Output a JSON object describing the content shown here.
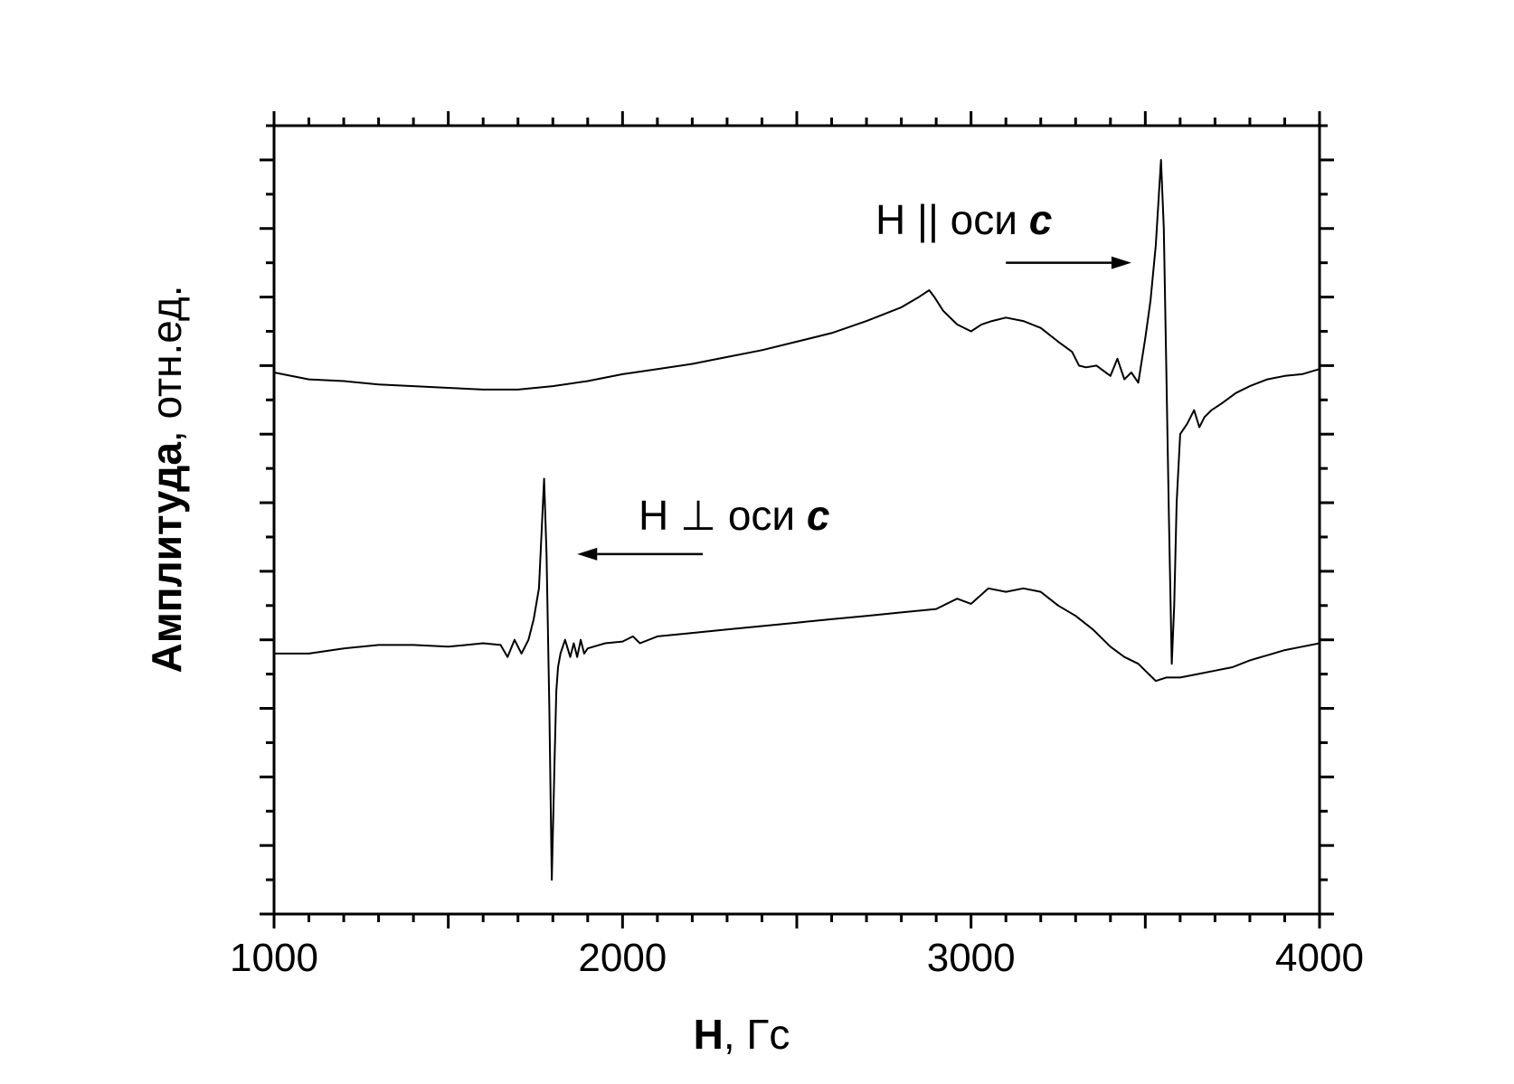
{
  "chart_data": {
    "type": "line",
    "xlabel_bold": "H",
    "xlabel_rest": ", Гс",
    "ylabel_bold": "Амплитуда",
    "ylabel_rest": ", отн.ед.",
    "xlim": [
      1000,
      4000
    ],
    "ylim": [
      0,
      23
    ],
    "x_ticks": [
      1000,
      2000,
      3000,
      4000
    ],
    "x_tick_labels": [
      "1000",
      "2000",
      "3000",
      "4000"
    ],
    "y_tick_labels_shown": false,
    "grid": false,
    "annotations": [
      {
        "id": "parallel",
        "text_plain": "H || оси ",
        "text_emph": "c",
        "arrow_from_x": 3100,
        "arrow_to_x": 3460,
        "arrow_y": 19.0,
        "points_to_series": "H || оси c"
      },
      {
        "id": "perpendicular",
        "text_plain": "H ⊥ оси ",
        "text_emph": "c",
        "arrow_from_x": 2230,
        "arrow_to_x": 1870,
        "arrow_y": 10.5,
        "points_to_series": "H ⊥ оси c"
      }
    ],
    "series": [
      {
        "name": "H || оси c",
        "x": [
          1000,
          1100,
          1200,
          1300,
          1400,
          1500,
          1600,
          1700,
          1800,
          1900,
          2000,
          2100,
          2200,
          2300,
          2400,
          2500,
          2600,
          2700,
          2800,
          2850,
          2880,
          2895,
          2920,
          2960,
          3000,
          3030,
          3060,
          3100,
          3150,
          3200,
          3250,
          3290,
          3310,
          3330,
          3360,
          3400,
          3420,
          3440,
          3460,
          3480,
          3500,
          3515,
          3530,
          3545,
          3553,
          3560,
          3568,
          3576,
          3583,
          3590,
          3600,
          3620,
          3640,
          3655,
          3670,
          3690,
          3720,
          3760,
          3800,
          3850,
          3900,
          3950,
          4000
        ],
        "values": [
          15.8,
          15.6,
          15.55,
          15.45,
          15.4,
          15.35,
          15.3,
          15.3,
          15.4,
          15.55,
          15.75,
          15.9,
          16.05,
          16.25,
          16.45,
          16.7,
          16.95,
          17.3,
          17.7,
          18.0,
          18.2,
          18.0,
          17.6,
          17.2,
          17.0,
          17.2,
          17.3,
          17.4,
          17.3,
          17.1,
          16.7,
          16.4,
          16.0,
          15.95,
          16.0,
          15.7,
          16.2,
          15.6,
          15.8,
          15.5,
          16.8,
          17.9,
          19.5,
          22.0,
          20.0,
          16.0,
          11.5,
          7.3,
          9.0,
          12.0,
          14.0,
          14.3,
          14.7,
          14.2,
          14.5,
          14.7,
          14.9,
          15.2,
          15.4,
          15.6,
          15.7,
          15.75,
          15.9
        ]
      },
      {
        "name": "H ⊥ оси c",
        "x": [
          1000,
          1100,
          1200,
          1300,
          1400,
          1500,
          1600,
          1650,
          1670,
          1690,
          1710,
          1730,
          1745,
          1760,
          1775,
          1782,
          1790,
          1797,
          1805,
          1810,
          1815,
          1822,
          1835,
          1850,
          1860,
          1870,
          1880,
          1890,
          1900,
          1950,
          2000,
          2030,
          2050,
          2100,
          2200,
          2300,
          2400,
          2500,
          2600,
          2700,
          2800,
          2900,
          2960,
          3000,
          3050,
          3100,
          3150,
          3200,
          3250,
          3300,
          3350,
          3400,
          3440,
          3480,
          3500,
          3530,
          3560,
          3600,
          3650,
          3700,
          3750,
          3800,
          3850,
          3900,
          3950,
          4000
        ],
        "values": [
          7.6,
          7.6,
          7.75,
          7.85,
          7.85,
          7.8,
          7.9,
          7.85,
          7.5,
          8.0,
          7.6,
          8.0,
          8.6,
          9.5,
          12.7,
          10.5,
          6.0,
          1.0,
          4.5,
          6.5,
          7.2,
          7.6,
          8.0,
          7.5,
          7.9,
          7.5,
          8.0,
          7.6,
          7.75,
          7.9,
          7.95,
          8.1,
          7.9,
          8.1,
          8.2,
          8.3,
          8.4,
          8.5,
          8.6,
          8.7,
          8.8,
          8.9,
          9.2,
          9.05,
          9.5,
          9.4,
          9.5,
          9.4,
          9.0,
          8.7,
          8.3,
          7.8,
          7.5,
          7.3,
          7.1,
          6.8,
          6.9,
          6.9,
          7.0,
          7.1,
          7.2,
          7.4,
          7.55,
          7.7,
          7.8,
          7.9
        ]
      }
    ]
  }
}
